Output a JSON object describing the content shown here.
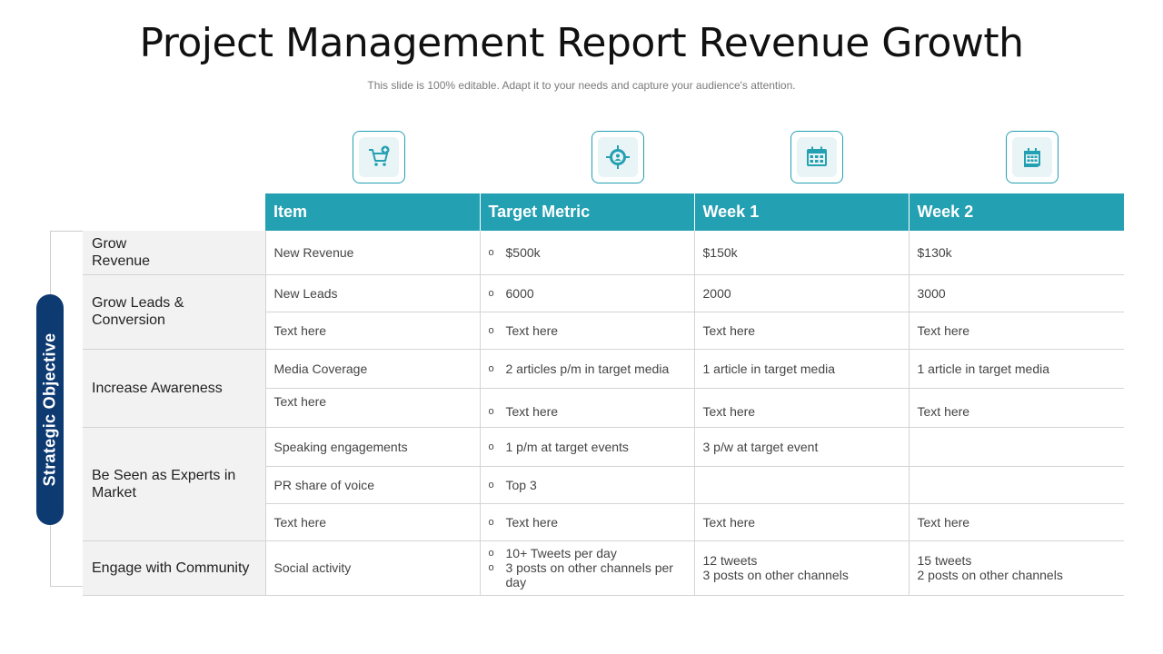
{
  "header": {
    "title": "Project Management Report Revenue Growth",
    "subtitle": "This slide is 100% editable. Adapt it to your needs and capture your audience's attention."
  },
  "side_label": "Strategic Objective",
  "icons": [
    "cart-add-icon",
    "target-user-icon",
    "calendar-icon",
    "calendar-page-icon"
  ],
  "accent_color": "#23a0b2",
  "side_pill_color": "#0e3a72",
  "table": {
    "headers": [
      "Item",
      "Target Metric",
      "Week 1",
      "Week 2"
    ],
    "objectives": {
      "o1": "Grow\nRevenue",
      "o2": "Grow Leads &\nConversion",
      "o3": "Increase Awareness",
      "o4": "Be Seen as Experts in\nMarket",
      "o5": "Engage with Community"
    },
    "rows": [
      {
        "item": "New Revenue",
        "target": [
          "$500k"
        ],
        "week1": "$150k",
        "week2": "$130k"
      },
      {
        "item": "New Leads",
        "target": [
          "6000"
        ],
        "week1": "2000",
        "week2": "3000"
      },
      {
        "item": "Text here",
        "target": [
          "Text here"
        ],
        "week1": "Text here",
        "week2": "Text here"
      },
      {
        "item": "Media Coverage",
        "target": [
          "2 articles p/m in target media"
        ],
        "week1": "1 article in target media",
        "week2": "1 article in target media"
      },
      {
        "item": "Text here",
        "target": [
          "Text here"
        ],
        "week1": "Text here",
        "week2": "Text here"
      },
      {
        "item": "Speaking engagements",
        "target": [
          "1 p/m at target events"
        ],
        "week1": "3 p/w at target event",
        "week2": ""
      },
      {
        "item": "PR share of voice",
        "target": [
          "Top 3"
        ],
        "week1": "",
        "week2": ""
      },
      {
        "item": "Text here",
        "target": [
          "Text here"
        ],
        "week1": "Text here",
        "week2": "Text here"
      },
      {
        "item": "Social activity",
        "target": [
          "10+ Tweets per day",
          "3 posts on other channels per day"
        ],
        "week1": "12 tweets\n3 posts on other channels",
        "week2": "15 tweets\n2 posts on other channels"
      }
    ],
    "bullet": "o"
  }
}
